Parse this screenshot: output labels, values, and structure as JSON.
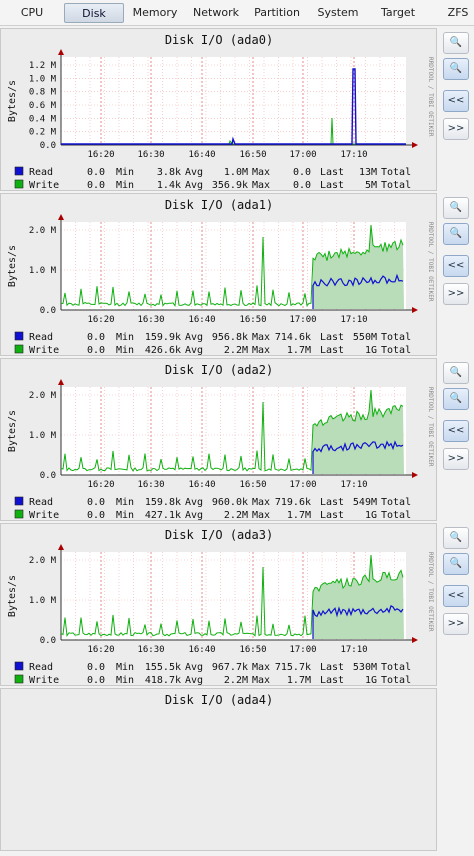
{
  "tabs": [
    {
      "label": "CPU",
      "active": false
    },
    {
      "label": "Disk",
      "active": true
    },
    {
      "label": "Memory",
      "active": false
    },
    {
      "label": "Network",
      "active": false
    },
    {
      "label": "Partition",
      "active": false
    },
    {
      "label": "System",
      "active": false
    },
    {
      "label": "Target",
      "active": false
    },
    {
      "label": "ZFS",
      "active": false
    }
  ],
  "side_buttons": {
    "zoom_in": "🔍",
    "zoom_out": "🔍",
    "back": "<<",
    "forward": ">>"
  },
  "colors": {
    "read": "#1010d0",
    "write": "#10b010",
    "area": "#b9dcb9",
    "grid": "#f0b0b0"
  },
  "x_ticks": [
    "16:20",
    "16:30",
    "16:40",
    "16:50",
    "17:00",
    "17:10"
  ],
  "watermark": "RRDTOOL / TOBI OETIKER",
  "ylabel": "Bytes/s",
  "legend_headers": {
    "min": "Min",
    "avg": "Avg",
    "max": "Max",
    "last": "Last",
    "total": "Total"
  },
  "panels": [
    {
      "title": "Disk I/O (ada0)",
      "y_ticks": [
        "1.2 M",
        "1.0 M",
        "0.8 M",
        "0.6 M",
        "0.4 M",
        "0.2 M",
        "0.0"
      ],
      "read": {
        "label": "Read",
        "cur": "0.0",
        "min": "3.8k",
        "avg": "1.0M",
        "max": "0.0",
        "last": "13M"
      },
      "write": {
        "label": "Write",
        "cur": "0.0",
        "min": "1.4k",
        "avg": "356.9k",
        "max": "0.0",
        "last": "5M"
      }
    },
    {
      "title": "Disk I/O (ada1)",
      "y_ticks": [
        "2.0 M",
        "1.0 M",
        "0.0"
      ],
      "read": {
        "label": "Read",
        "cur": "0.0",
        "min": "159.9k",
        "avg": "956.8k",
        "max": "714.6k",
        "last": "550M"
      },
      "write": {
        "label": "Write",
        "cur": "0.0",
        "min": "426.6k",
        "avg": "2.2M",
        "max": "1.7M",
        "last": "1G"
      }
    },
    {
      "title": "Disk I/O (ada2)",
      "y_ticks": [
        "2.0 M",
        "1.0 M",
        "0.0"
      ],
      "read": {
        "label": "Read",
        "cur": "0.0",
        "min": "159.8k",
        "avg": "960.0k",
        "max": "719.6k",
        "last": "549M"
      },
      "write": {
        "label": "Write",
        "cur": "0.0",
        "min": "427.1k",
        "avg": "2.2M",
        "max": "1.7M",
        "last": "1G"
      }
    },
    {
      "title": "Disk I/O (ada3)",
      "y_ticks": [
        "2.0 M",
        "1.0 M",
        "0.0"
      ],
      "read": {
        "label": "Read",
        "cur": "0.0",
        "min": "155.5k",
        "avg": "967.7k",
        "max": "715.7k",
        "last": "530M"
      },
      "write": {
        "label": "Write",
        "cur": "0.0",
        "min": "418.7k",
        "avg": "2.2M",
        "max": "1.7M",
        "last": "1G"
      }
    },
    {
      "title": "Disk I/O (ada4)"
    }
  ]
}
